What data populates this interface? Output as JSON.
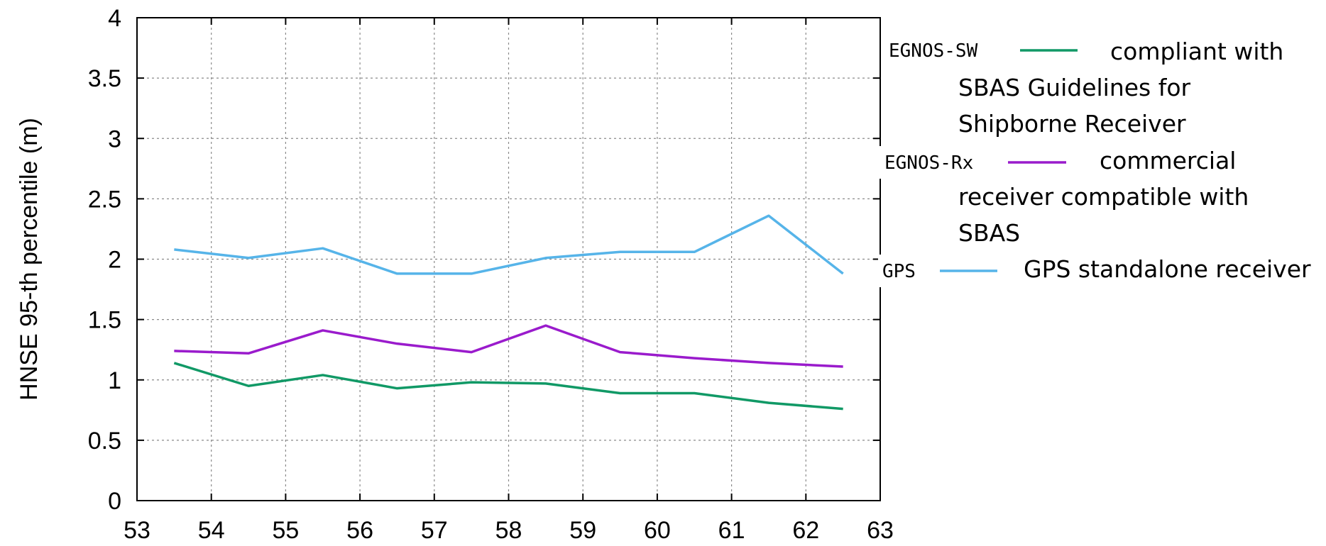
{
  "chart_data": {
    "type": "line",
    "title": "",
    "xlabel": "",
    "ylabel": "HNSE 95-th percentile (m)",
    "xlim": [
      53,
      63
    ],
    "ylim": [
      0,
      4
    ],
    "xticks": [
      "53",
      "54",
      "55",
      "56",
      "57",
      "58",
      "59",
      "60",
      "61",
      "62",
      "63"
    ],
    "yticks": [
      "0",
      "0.5",
      "1",
      "1.5",
      "2",
      "2.5",
      "3",
      "3.5",
      "4"
    ],
    "grid": true,
    "legend_position": "right",
    "x": [
      53.5,
      54.5,
      55.5,
      56.5,
      57.5,
      58.5,
      59.5,
      60.5,
      61.5,
      62.5
    ],
    "series": [
      {
        "name": "EGNOS-SW",
        "description": [
          "compliant with",
          "SBAS Guidelines for",
          "Shipborne Receiver"
        ],
        "color": "#119966",
        "values": [
          1.14,
          0.95,
          1.04,
          0.93,
          0.98,
          0.97,
          0.89,
          0.89,
          0.81,
          0.76
        ]
      },
      {
        "name": "EGNOS-Rx",
        "description": [
          "commercial",
          "receiver compatible with",
          "SBAS"
        ],
        "color": "#9A1BCC",
        "values": [
          1.24,
          1.22,
          1.41,
          1.3,
          1.23,
          1.45,
          1.23,
          1.18,
          1.14,
          1.11
        ]
      },
      {
        "name": "GPS",
        "description": [
          "GPS standalone receiver"
        ],
        "color": "#56B4E9",
        "values": [
          2.08,
          2.01,
          2.09,
          1.88,
          1.88,
          2.01,
          2.06,
          2.06,
          2.36,
          1.88
        ]
      }
    ]
  }
}
